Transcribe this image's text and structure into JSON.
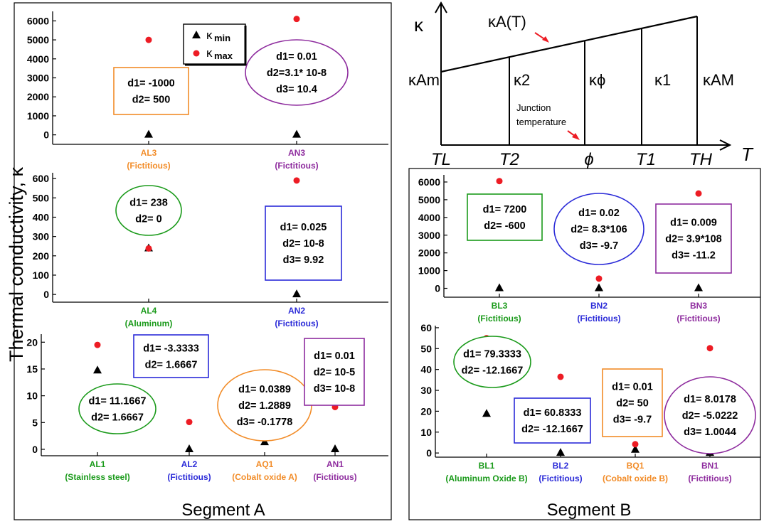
{
  "figure": {
    "y_axis_label": "Thermal conductivity, κ",
    "segment_a_title": "Segment A",
    "segment_b_title": "Segment B"
  },
  "legend": {
    "items": [
      {
        "marker": "triangle",
        "base": "κ",
        "sub": "min"
      },
      {
        "marker": "circle",
        "base": "κ",
        "sub": "max"
      }
    ]
  },
  "colors": {
    "kmin": "#000000",
    "kmax": "#ed1c24",
    "green": "#1a9a1a",
    "blue": "#2b2bd8",
    "orange": "#f28c28",
    "purple": "#8e2c9e"
  },
  "diagram": {
    "y_label": "κ",
    "x_label": "T",
    "line_label": "κA(T)",
    "junction_label": [
      "Junction",
      "temperature"
    ],
    "x_ticks": [
      "TL",
      "T2",
      "ϕ",
      "T1",
      "TH"
    ],
    "region_labels": [
      "κ2",
      "κϕ",
      "κ1"
    ],
    "left_label": "κAm",
    "right_label": "κAM"
  },
  "chart_data": [
    {
      "id": "A-top",
      "type": "scatter",
      "categories": [
        {
          "code": "AL3",
          "desc": "(Fictitious)",
          "color": "orange"
        },
        {
          "code": "AN3",
          "desc": "(Fictitious)",
          "color": "purple"
        }
      ],
      "ylim": [
        -500,
        6500
      ],
      "yticks": [
        0,
        1000,
        2000,
        3000,
        4000,
        5000,
        6000
      ],
      "series": [
        {
          "name": "κmin",
          "values": [
            0,
            0
          ]
        },
        {
          "name": "κmax",
          "values": [
            5000,
            6100
          ]
        }
      ],
      "annotations": [
        {
          "shape": "rect",
          "color": "orange",
          "lines": [
            "d1= -1000",
            "d2= 500"
          ]
        },
        {
          "shape": "ellipse",
          "color": "purple",
          "lines": [
            "d1= 0.01",
            "d2=3.1* 10-8",
            "d3= 10.4"
          ]
        }
      ]
    },
    {
      "id": "A-mid",
      "type": "scatter",
      "categories": [
        {
          "code": "AL4",
          "desc": "(Aluminum)",
          "color": "green"
        },
        {
          "code": "AN2",
          "desc": "(Fictitious)",
          "color": "blue"
        }
      ],
      "ylim": [
        -40,
        630
      ],
      "yticks": [
        0,
        100,
        200,
        300,
        400,
        500,
        600
      ],
      "series": [
        {
          "name": "κmin",
          "values": [
            238,
            0
          ]
        },
        {
          "name": "κmax",
          "values": [
            238,
            590
          ]
        }
      ],
      "annotations": [
        {
          "shape": "ellipse",
          "color": "green",
          "lines": [
            "d1= 238",
            "d2= 0"
          ]
        },
        {
          "shape": "rect",
          "color": "blue",
          "lines": [
            "d1= 0.025",
            "d2= 10-8",
            "d3= 9.92"
          ]
        }
      ]
    },
    {
      "id": "A-bot",
      "type": "scatter",
      "categories": [
        {
          "code": "AL1",
          "desc": "(Stainless steel)",
          "color": "green"
        },
        {
          "code": "AL2",
          "desc": "(Fictitious)",
          "color": "blue"
        },
        {
          "code": "AQ1",
          "desc": "(Cobalt oxide A)",
          "color": "orange"
        },
        {
          "code": "AN1",
          "desc": "(Fictitious)",
          "color": "purple"
        }
      ],
      "ylim": [
        -1.2,
        21.5
      ],
      "yticks": [
        0,
        5,
        10,
        15,
        20
      ],
      "series": [
        {
          "name": "κmin",
          "values": [
            14.7,
            0,
            1.3,
            0
          ]
        },
        {
          "name": "κmax",
          "values": [
            19.5,
            5.1,
            2.2,
            7.9
          ]
        }
      ],
      "annotations": [
        {
          "shape": "ellipse",
          "color": "green",
          "lines": [
            "d1= 11.1667",
            "d2= 1.6667"
          ]
        },
        {
          "shape": "rect",
          "color": "blue",
          "lines": [
            "d1= -3.3333",
            "d2= 1.6667"
          ]
        },
        {
          "shape": "ellipse",
          "color": "orange",
          "lines": [
            "d1= 0.0389",
            "d2= 1.2889",
            "d3= -0.1778"
          ]
        },
        {
          "shape": "rect",
          "color": "purple",
          "lines": [
            "d1= 0.01",
            "d2= 10-5",
            "d3= 10-8"
          ]
        }
      ]
    },
    {
      "id": "B-top",
      "type": "scatter",
      "categories": [
        {
          "code": "BL3",
          "desc": "(Fictitious)",
          "color": "green"
        },
        {
          "code": "BN2",
          "desc": "(Fictitious)",
          "color": "blue"
        },
        {
          "code": "BN3",
          "desc": "(Fictitious)",
          "color": "purple"
        }
      ],
      "ylim": [
        -500,
        6400
      ],
      "yticks": [
        0,
        1000,
        2000,
        3000,
        4000,
        5000,
        6000
      ],
      "series": [
        {
          "name": "κmin",
          "values": [
            0,
            0,
            0
          ]
        },
        {
          "name": "κmax",
          "values": [
            6050,
            550,
            5350
          ]
        }
      ],
      "annotations": [
        {
          "shape": "rect",
          "color": "green",
          "lines": [
            "d1= 7200",
            "d2= -600"
          ]
        },
        {
          "shape": "ellipse",
          "color": "blue",
          "lines": [
            "d1= 0.02",
            "d2= 8.3*106",
            "d3= -9.7"
          ]
        },
        {
          "shape": "rect",
          "color": "purple",
          "lines": [
            "d1= 0.009",
            "d2= 3.9*108",
            "d3= -11.2"
          ]
        }
      ]
    },
    {
      "id": "B-bot",
      "type": "scatter",
      "categories": [
        {
          "code": "BL1",
          "desc": "(Aluminum Oxide B)",
          "color": "green"
        },
        {
          "code": "BL2",
          "desc": "(Fictitious)",
          "color": "blue"
        },
        {
          "code": "BQ1",
          "desc": "(Cobalt oxide B)",
          "color": "orange"
        },
        {
          "code": "BN1",
          "desc": "(Fictitious)",
          "color": "purple"
        }
      ],
      "ylim": [
        -2,
        61
      ],
      "yticks": [
        0,
        10,
        20,
        30,
        40,
        50,
        60
      ],
      "series": [
        {
          "name": "κmin",
          "values": [
            18.7,
            0,
            1.5,
            0
          ]
        },
        {
          "name": "κmax",
          "values": [
            55,
            36.5,
            4.2,
            50.2
          ]
        }
      ],
      "annotations": [
        {
          "shape": "ellipse",
          "color": "green",
          "lines": [
            "d1= 79.3333",
            "d2= -12.1667"
          ]
        },
        {
          "shape": "rect",
          "color": "blue",
          "lines": [
            "d1= 60.8333",
            "d2= -12.1667"
          ]
        },
        {
          "shape": "rect",
          "color": "orange",
          "lines": [
            "d1= 0.01",
            "d2= 50",
            "d3= -9.7"
          ]
        },
        {
          "shape": "ellipse",
          "color": "purple",
          "lines": [
            "d1= 8.0178",
            "d2= -5.0222",
            "d3= 1.0044"
          ]
        }
      ]
    }
  ]
}
